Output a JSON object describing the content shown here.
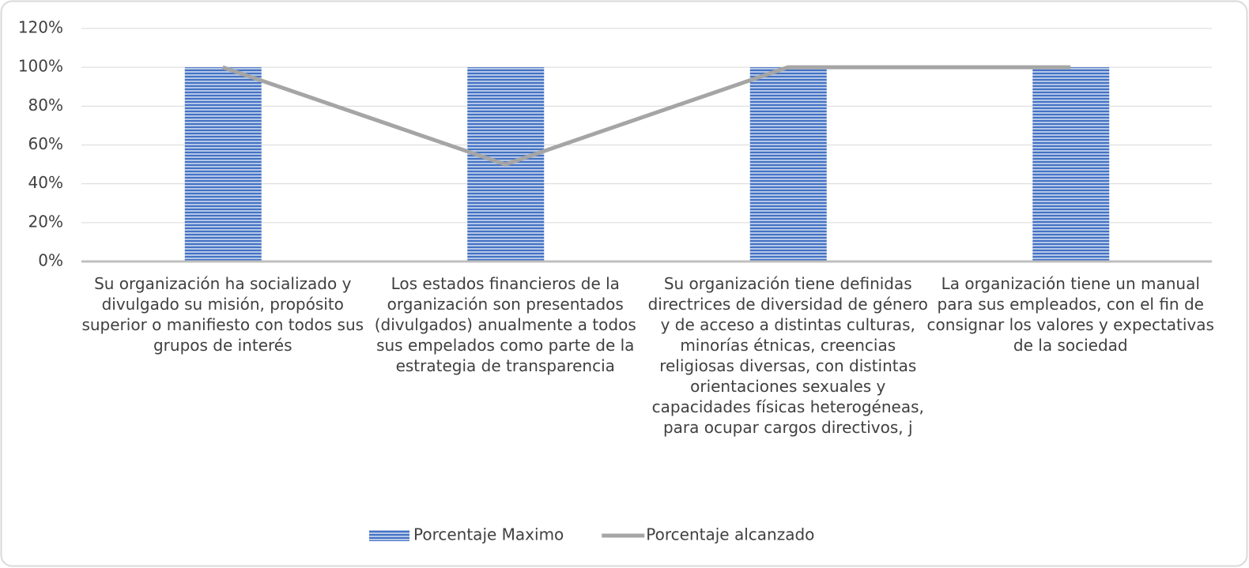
{
  "chart_data": {
    "type": "bar",
    "categories": [
      "Su organización ha socializado y divulgado su misión, propósito superior o manifiesto con todos sus grupos de interés",
      "Los estados financieros de la organización son presentados (divulgados) anualmente a todos sus empelados como parte de la estrategia de transparencia",
      "Su organización tiene definidas directrices de diversidad de género y de acceso a distintas culturas, minorías étnicas, creencias religiosas diversas, con distintas orientaciones sexuales y capacidades físicas heterogéneas, para ocupar cargos directivos, j",
      "La organización tiene un manual para sus empleados, con el fin de consignar los valores y expectativas de la sociedad"
    ],
    "series": [
      {
        "name": "Porcentaje Maximo",
        "type": "bar",
        "color": "#4472c4",
        "values": [
          100,
          100,
          100,
          100
        ]
      },
      {
        "name": "Porcentaje alcanzado",
        "type": "line",
        "color": "#a5a5a5",
        "values": [
          100,
          50,
          100,
          100
        ]
      }
    ],
    "ylim": [
      0,
      120
    ],
    "yticks": [
      {
        "value": 0,
        "label": "0%"
      },
      {
        "value": 20,
        "label": "20%"
      },
      {
        "value": 40,
        "label": "40%"
      },
      {
        "value": 60,
        "label": "60%"
      },
      {
        "value": 80,
        "label": "80%"
      },
      {
        "value": 100,
        "label": "100%"
      },
      {
        "value": 120,
        "label": "120%"
      }
    ],
    "grid": true,
    "legend": "bottom"
  }
}
